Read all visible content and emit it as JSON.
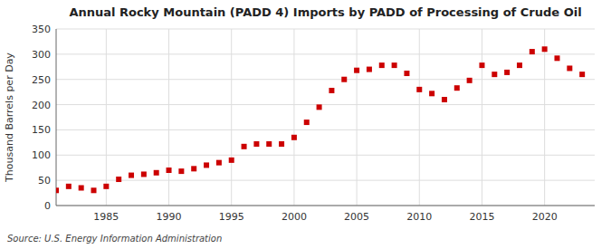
{
  "chart_data": {
    "type": "scatter",
    "title": "Annual Rocky Mountain (PADD 4) Imports by PADD of Processing of Crude Oil",
    "y_label": "Thousand Barrels per Day",
    "source": "Source: U.S. Energy Information Administration",
    "x": [
      1981,
      1982,
      1983,
      1984,
      1985,
      1986,
      1987,
      1988,
      1989,
      1990,
      1991,
      1992,
      1993,
      1994,
      1995,
      1996,
      1997,
      1998,
      1999,
      2000,
      2001,
      2002,
      2003,
      2004,
      2005,
      2006,
      2007,
      2008,
      2009,
      2010,
      2011,
      2012,
      2013,
      2014,
      2015,
      2016,
      2017,
      2018,
      2019,
      2020,
      2021,
      2022,
      2023
    ],
    "values": [
      30,
      38,
      35,
      30,
      38,
      52,
      60,
      62,
      65,
      70,
      68,
      73,
      80,
      85,
      90,
      117,
      122,
      122,
      122,
      135,
      165,
      195,
      228,
      250,
      268,
      270,
      278,
      278,
      262,
      230,
      222,
      210,
      233,
      248,
      278,
      260,
      264,
      278,
      305,
      310,
      292,
      272,
      260
    ],
    "color": "#CC0000",
    "marker": "square",
    "grid": true,
    "xlim": [
      1981,
      2024
    ],
    "ylim": [
      0,
      350
    ],
    "xticks": [
      1985,
      1990,
      1995,
      2000,
      2005,
      2010,
      2015,
      2020
    ],
    "yticks": [
      0,
      50,
      100,
      150,
      200,
      250,
      300,
      350
    ]
  }
}
